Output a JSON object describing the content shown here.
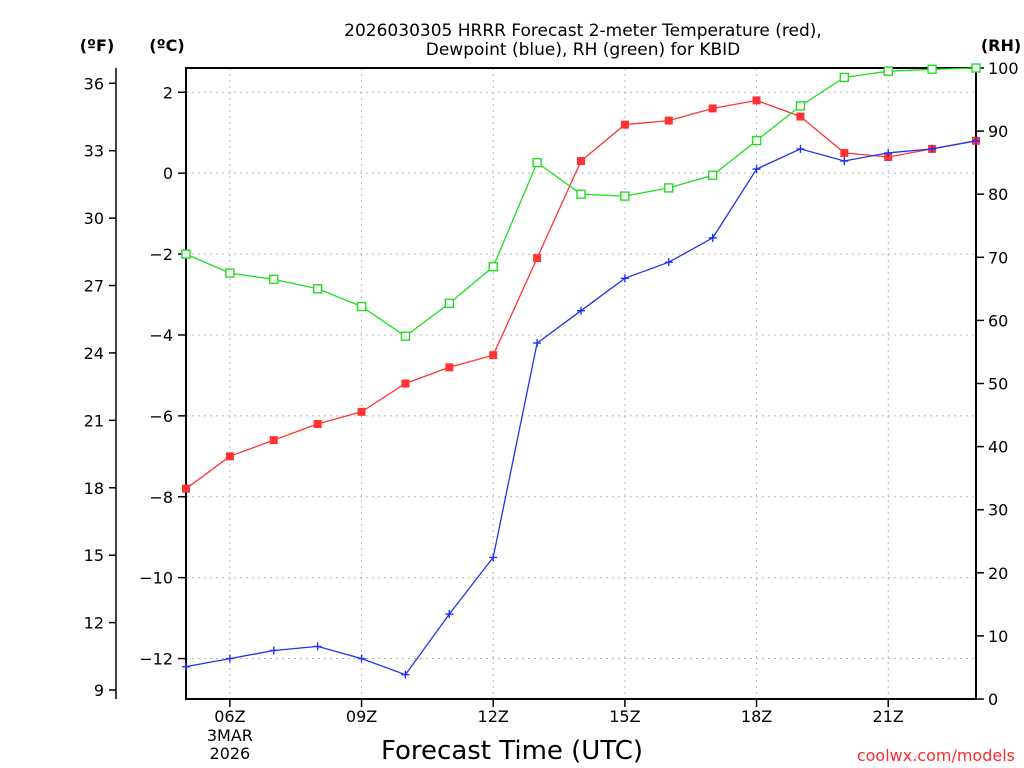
{
  "chart_data": {
    "type": "line",
    "title_line1": "2026030305 HRRR Forecast 2-meter Temperature (red),",
    "title_line2": "Dewpoint (blue), RH (green) for KBID",
    "xlabel": "Forecast Time (UTC)",
    "unit_left_f": "(ºF)",
    "unit_left_c": "(ºC)",
    "unit_right": "(RH)",
    "credit": "coolwx.com/models",
    "x_ticks": [
      {
        "hour": 6,
        "label": "06Z",
        "sub": [
          "3MAR",
          "2026"
        ]
      },
      {
        "hour": 9,
        "label": "09Z"
      },
      {
        "hour": 12,
        "label": "12Z"
      },
      {
        "hour": 15,
        "label": "15Z"
      },
      {
        "hour": 18,
        "label": "18Z"
      },
      {
        "hour": 21,
        "label": "21Z"
      }
    ],
    "xlim": [
      5,
      23
    ],
    "ylim_c": [
      -13.0,
      2.6
    ],
    "ylim_rh": [
      0,
      100
    ],
    "c_ticks": [
      2,
      0,
      -2,
      -4,
      -6,
      -8,
      -10,
      -12
    ],
    "f_ticks": [
      36,
      33,
      30,
      27,
      24,
      21,
      18,
      15,
      12,
      9
    ],
    "rh_ticks": [
      100,
      90,
      80,
      70,
      60,
      50,
      40,
      30,
      20,
      10,
      0
    ],
    "hours": [
      5,
      6,
      7,
      8,
      9,
      10,
      11,
      12,
      13,
      14,
      15,
      16,
      17,
      18,
      19,
      20,
      21,
      22,
      23
    ],
    "series": [
      {
        "name": "Temperature",
        "color": "#ff3333",
        "marker": "filled-square",
        "axis": "c",
        "values": [
          -7.8,
          -7.0,
          -6.6,
          -6.2,
          -5.9,
          -5.2,
          -4.8,
          -4.5,
          -2.1,
          0.3,
          1.2,
          1.3,
          1.6,
          1.8,
          1.4,
          0.5,
          0.4,
          0.6,
          0.8
        ]
      },
      {
        "name": "Dewpoint",
        "color": "#2233ee",
        "marker": "plus",
        "axis": "c",
        "values": [
          -12.2,
          -12.0,
          -11.8,
          -11.7,
          -12.0,
          -12.4,
          -10.9,
          -9.5,
          -4.2,
          -3.4,
          -2.6,
          -2.2,
          -1.6,
          0.1,
          0.6,
          0.3,
          0.5,
          0.6,
          0.8
        ]
      },
      {
        "name": "RH",
        "color": "#22dd22",
        "marker": "open-square",
        "axis": "rh",
        "values": [
          70.5,
          67.5,
          66.5,
          65,
          62.2,
          57.5,
          62.7,
          68.5,
          85,
          80,
          79.7,
          81,
          83,
          88.5,
          94,
          98.5,
          99.5,
          99.8,
          100
        ]
      }
    ]
  }
}
